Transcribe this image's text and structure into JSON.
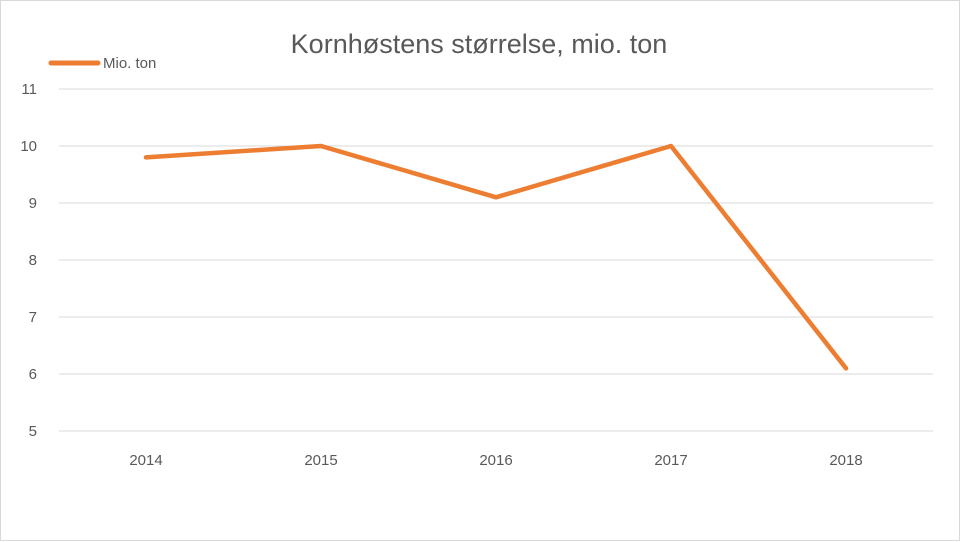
{
  "chart_data": {
    "type": "line",
    "title": "Kornhøstens størrelse, mio. ton",
    "categories": [
      "2014",
      "2015",
      "2016",
      "2017",
      "2018"
    ],
    "series": [
      {
        "name": "Mio. ton",
        "values": [
          9.8,
          10.0,
          9.1,
          10.0,
          6.1
        ],
        "color": "#ED7D31"
      }
    ],
    "ylim": [
      5,
      11
    ],
    "yticks": [
      5,
      6,
      7,
      8,
      9,
      10,
      11
    ],
    "grid": true,
    "gridColor": "#d9d9d9",
    "legend": "top-left",
    "xlabel": "",
    "ylabel": ""
  }
}
